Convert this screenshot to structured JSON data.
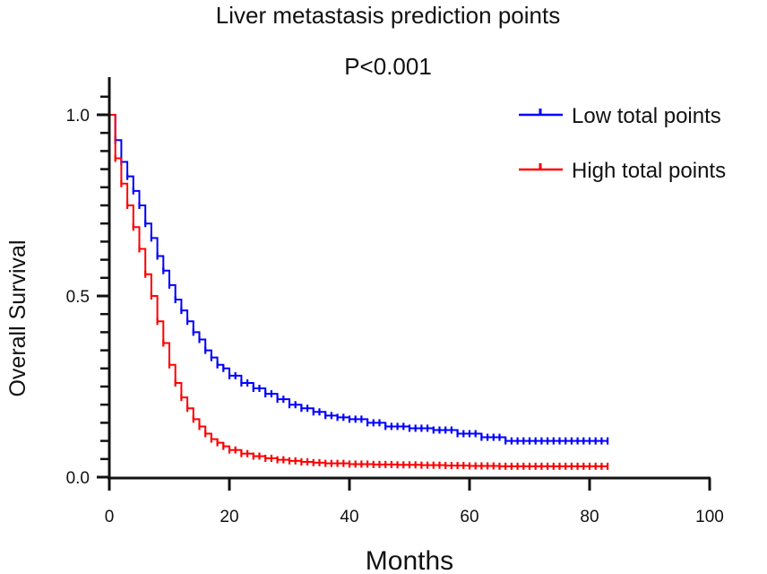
{
  "chart_data": {
    "type": "line",
    "subtype": "kaplan-meier",
    "title": "Liver metastasis prediction points",
    "subtitle": "P<0.001",
    "xlabel": "Months",
    "ylabel": "Overall Survival",
    "xlim": [
      0,
      100
    ],
    "ylim": [
      0,
      1.05
    ],
    "x_ticks": [
      0,
      20,
      40,
      60,
      80,
      100
    ],
    "x_tick_labels": [
      "0",
      "20",
      "40",
      "60",
      "80",
      "100"
    ],
    "y_ticks": [
      0,
      0.5,
      1.0
    ],
    "y_tick_labels": [
      "0.0",
      "0.5",
      "1.0"
    ],
    "y_minor_step": 0.05,
    "grid": false,
    "legend_position": "top-right",
    "series": [
      {
        "name": "Low total points",
        "color": "#0000ff",
        "x": [
          0,
          1,
          2,
          3,
          4,
          5,
          6,
          7,
          8,
          9,
          10,
          11,
          12,
          13,
          14,
          15,
          16,
          17,
          18,
          19,
          20,
          22,
          24,
          26,
          28,
          30,
          32,
          34,
          36,
          38,
          40,
          43,
          46,
          50,
          54,
          58,
          62,
          66,
          70,
          74,
          78,
          83
        ],
        "y": [
          1.0,
          0.93,
          0.87,
          0.83,
          0.79,
          0.75,
          0.7,
          0.66,
          0.61,
          0.57,
          0.53,
          0.49,
          0.46,
          0.43,
          0.4,
          0.38,
          0.35,
          0.33,
          0.31,
          0.3,
          0.28,
          0.26,
          0.245,
          0.23,
          0.215,
          0.2,
          0.19,
          0.18,
          0.17,
          0.165,
          0.16,
          0.15,
          0.14,
          0.135,
          0.13,
          0.12,
          0.11,
          0.1,
          0.1,
          0.1,
          0.1,
          0.1
        ]
      },
      {
        "name": "High total points",
        "color": "#ff0000",
        "x": [
          0,
          1,
          2,
          3,
          4,
          5,
          6,
          7,
          8,
          9,
          10,
          11,
          12,
          13,
          14,
          15,
          16,
          17,
          18,
          19,
          20,
          22,
          24,
          26,
          28,
          30,
          32,
          34,
          36,
          40,
          44,
          48,
          52,
          56,
          60,
          65,
          70,
          75,
          83
        ],
        "y": [
          1.0,
          0.88,
          0.81,
          0.75,
          0.69,
          0.63,
          0.56,
          0.5,
          0.43,
          0.37,
          0.31,
          0.26,
          0.22,
          0.19,
          0.16,
          0.14,
          0.12,
          0.105,
          0.095,
          0.085,
          0.075,
          0.065,
          0.058,
          0.052,
          0.048,
          0.045,
          0.042,
          0.04,
          0.038,
          0.036,
          0.035,
          0.034,
          0.033,
          0.032,
          0.031,
          0.03,
          0.03,
          0.03,
          0.03
        ]
      }
    ]
  }
}
